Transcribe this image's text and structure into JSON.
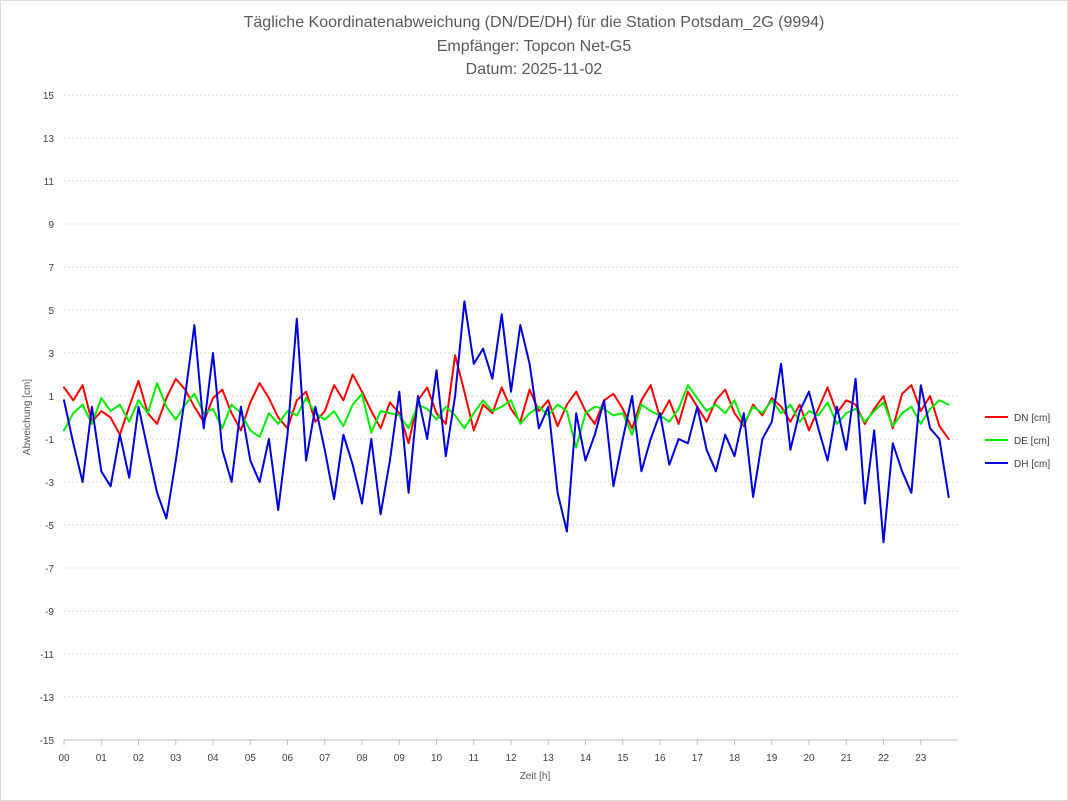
{
  "chart_data": {
    "type": "line",
    "title": [
      "Tägliche Koordinatenabweichung (DN/DE/DH) für die Station Potsdam_2G (9994)",
      "Empfänger: Topcon Net-G5",
      "Datum: 2025-11-02"
    ],
    "xlabel": "Zeit [h]",
    "ylabel": "Abweichung [cm]",
    "xlim": [
      0,
      24
    ],
    "ylim": [
      -15,
      15
    ],
    "x_ticks": [
      "00",
      "01",
      "02",
      "03",
      "04",
      "05",
      "06",
      "07",
      "08",
      "09",
      "10",
      "11",
      "12",
      "13",
      "14",
      "15",
      "16",
      "17",
      "18",
      "19",
      "20",
      "21",
      "22",
      "23"
    ],
    "y_ticks": [
      15,
      13,
      11,
      9,
      7,
      5,
      3,
      1,
      -1,
      -3,
      -5,
      -7,
      -9,
      -11,
      -13,
      -15
    ],
    "grid": true,
    "legend_position": "right",
    "x_step_hours": 0.25,
    "series": [
      {
        "name": "DN [cm]",
        "color": "#ff0000",
        "values": [
          1.4,
          0.8,
          1.5,
          -0.2,
          0.3,
          0.0,
          -0.8,
          0.5,
          1.7,
          0.2,
          -0.3,
          0.9,
          1.8,
          1.3,
          0.5,
          -0.2,
          0.9,
          1.3,
          0.2,
          -0.6,
          0.7,
          1.6,
          0.9,
          0.0,
          -0.5,
          0.8,
          1.2,
          -0.2,
          0.3,
          1.5,
          0.8,
          2.0,
          1.2,
          0.3,
          -0.5,
          0.7,
          0.2,
          -1.2,
          0.8,
          1.4,
          0.2,
          -0.3,
          2.9,
          1.2,
          -0.6,
          0.6,
          0.2,
          1.4,
          0.4,
          -0.2,
          1.3,
          0.3,
          0.8,
          -0.4,
          0.6,
          1.2,
          0.3,
          -0.3,
          0.8,
          1.1,
          0.4,
          -0.5,
          0.8,
          1.5,
          0.0,
          0.8,
          -0.3,
          1.2,
          0.5,
          -0.2,
          0.8,
          1.3,
          0.2,
          -0.4,
          0.6,
          0.1,
          0.9,
          0.5,
          -0.2,
          0.6,
          -0.6,
          0.4,
          1.4,
          0.2,
          0.8,
          0.6,
          -0.3,
          0.4,
          1.0,
          -0.5,
          1.1,
          1.5,
          0.3,
          1.0,
          -0.4,
          -1.0
        ]
      },
      {
        "name": "DE [cm]",
        "color": "#00ee00",
        "values": [
          -0.6,
          0.2,
          0.6,
          -0.3,
          0.9,
          0.3,
          0.6,
          -0.2,
          0.8,
          0.2,
          1.6,
          0.5,
          -0.1,
          0.6,
          1.1,
          0.2,
          0.4,
          -0.5,
          0.6,
          0.2,
          -0.6,
          -0.9,
          0.2,
          -0.3,
          0.3,
          0.1,
          0.9,
          0.2,
          -0.1,
          0.3,
          -0.4,
          0.6,
          1.1,
          -0.7,
          0.3,
          0.2,
          0.1,
          -0.5,
          0.6,
          0.4,
          -0.1,
          0.5,
          0.1,
          -0.5,
          0.2,
          0.8,
          0.3,
          0.5,
          0.8,
          -0.3,
          0.2,
          0.5,
          0.1,
          0.6,
          0.3,
          -1.4,
          0.2,
          0.5,
          0.4,
          0.1,
          0.2,
          -0.8,
          0.6,
          0.3,
          0.1,
          -0.2,
          0.4,
          1.5,
          0.9,
          0.3,
          0.6,
          0.2,
          0.8,
          -0.3,
          0.5,
          0.2,
          0.8,
          0.2,
          0.6,
          -0.2,
          0.3,
          0.1,
          0.7,
          -0.3,
          0.2,
          0.4,
          -0.2,
          0.3,
          0.7,
          -0.4,
          0.2,
          0.5,
          -0.3,
          0.4,
          0.8,
          0.6
        ]
      },
      {
        "name": "DH [cm]",
        "color": "#0000dd",
        "values": [
          0.8,
          -1.2,
          -3.0,
          0.5,
          -2.5,
          -3.2,
          -0.8,
          -2.8,
          0.5,
          -1.5,
          -3.5,
          -4.7,
          -2.0,
          1.0,
          4.3,
          -0.5,
          3.0,
          -1.5,
          -3.0,
          0.5,
          -2.0,
          -3.0,
          -1.0,
          -4.3,
          -0.8,
          4.6,
          -2.0,
          0.5,
          -1.5,
          -3.8,
          -0.8,
          -2.2,
          -4.0,
          -1.0,
          -4.5,
          -2.0,
          1.2,
          -3.5,
          1.0,
          -1.0,
          2.2,
          -1.8,
          1.0,
          5.4,
          2.5,
          3.2,
          1.8,
          4.8,
          1.2,
          4.3,
          2.5,
          -0.5,
          0.5,
          -3.5,
          -5.3,
          0.2,
          -2.0,
          -0.8,
          0.8,
          -3.2,
          -1.0,
          1.0,
          -2.5,
          -1.0,
          0.2,
          -2.2,
          -1.0,
          -1.2,
          0.5,
          -1.5,
          -2.5,
          -0.8,
          -1.8,
          0.2,
          -3.7,
          -1.0,
          -0.2,
          2.5,
          -1.5,
          0.3,
          1.2,
          -0.5,
          -2.0,
          0.5,
          -1.5,
          1.8,
          -4.0,
          -0.6,
          -5.8,
          -1.2,
          -2.5,
          -3.5,
          1.5,
          -0.5,
          -1.0,
          -3.7
        ]
      }
    ]
  }
}
